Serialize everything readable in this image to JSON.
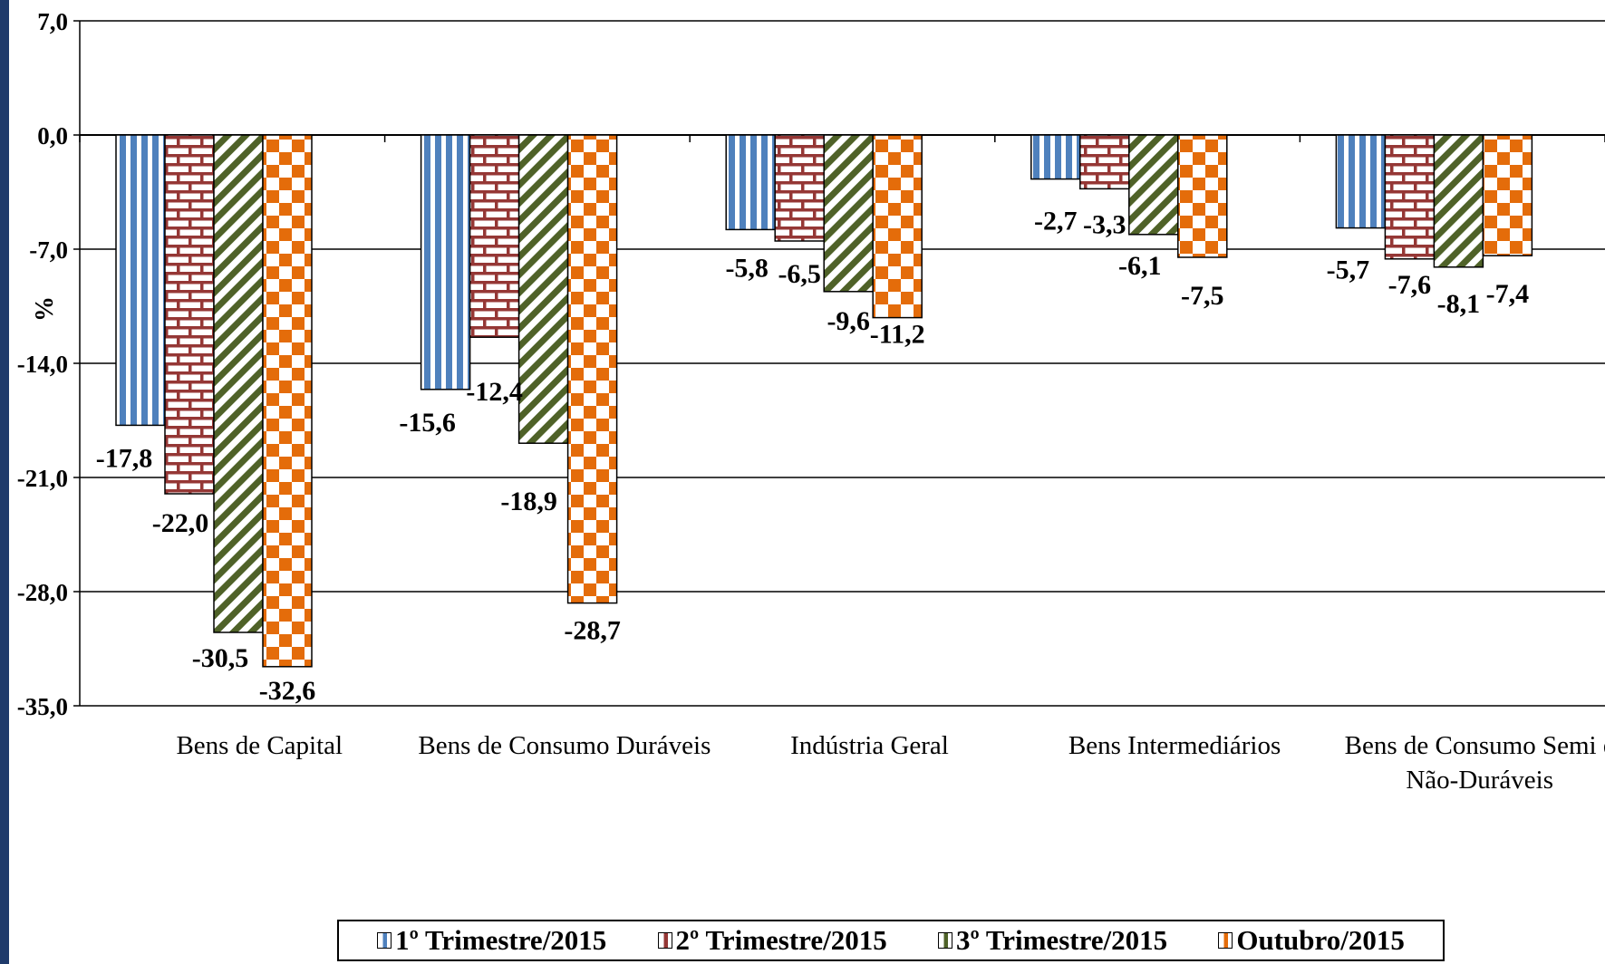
{
  "chart_data": {
    "type": "bar",
    "ylabel": "%",
    "ylim": [
      -35.0,
      7.0
    ],
    "yticks": [
      "7,0",
      "0,0",
      "-7,0",
      "-14,0",
      "-21,0",
      "-28,0",
      "-35,0"
    ],
    "ytick_values": [
      7,
      0,
      -7,
      -14,
      -21,
      -28,
      -35
    ],
    "grid": true,
    "legend_position": "bottom",
    "categories": [
      [
        "Bens de Capital"
      ],
      [
        "Bens de Consumo Duráveis"
      ],
      [
        "Indústria Geral"
      ],
      [
        "Bens Intermediários"
      ],
      [
        "Bens de Consumo Semi e",
        "Não-Duráveis"
      ]
    ],
    "series": [
      {
        "name": "1º Trimestre/2015",
        "values": [
          -17.8,
          -15.6,
          -5.8,
          -2.7,
          -5.7
        ],
        "labels": [
          "-17,8",
          "-15,6",
          "-5,8",
          "-2,7",
          "-5,7"
        ],
        "pattern": "vstripes",
        "color": "#4f81bd"
      },
      {
        "name": "2º Trimestre/2015",
        "values": [
          -22.0,
          -12.4,
          -6.5,
          -3.3,
          -7.6
        ],
        "labels": [
          "-22,0",
          "-12,4",
          "-6,5",
          "-3,3",
          "-7,6"
        ],
        "pattern": "bricks",
        "color": "#953735"
      },
      {
        "name": "3º Trimestre/2015",
        "values": [
          -30.5,
          -18.9,
          -9.6,
          -6.1,
          -8.1
        ],
        "labels": [
          "-30,5",
          "-18,9",
          "-9,6",
          "-6,1",
          "-8,1"
        ],
        "pattern": "diagonal",
        "color": "#4f6228"
      },
      {
        "name": "Outubro/2015",
        "values": [
          -32.6,
          -28.7,
          -11.2,
          -7.5,
          -7.4
        ],
        "labels": [
          "-32,6",
          "-28,7",
          "-11,2",
          "-7,5",
          "-7,4"
        ],
        "pattern": "checker",
        "color": "#e46c0a"
      }
    ]
  }
}
